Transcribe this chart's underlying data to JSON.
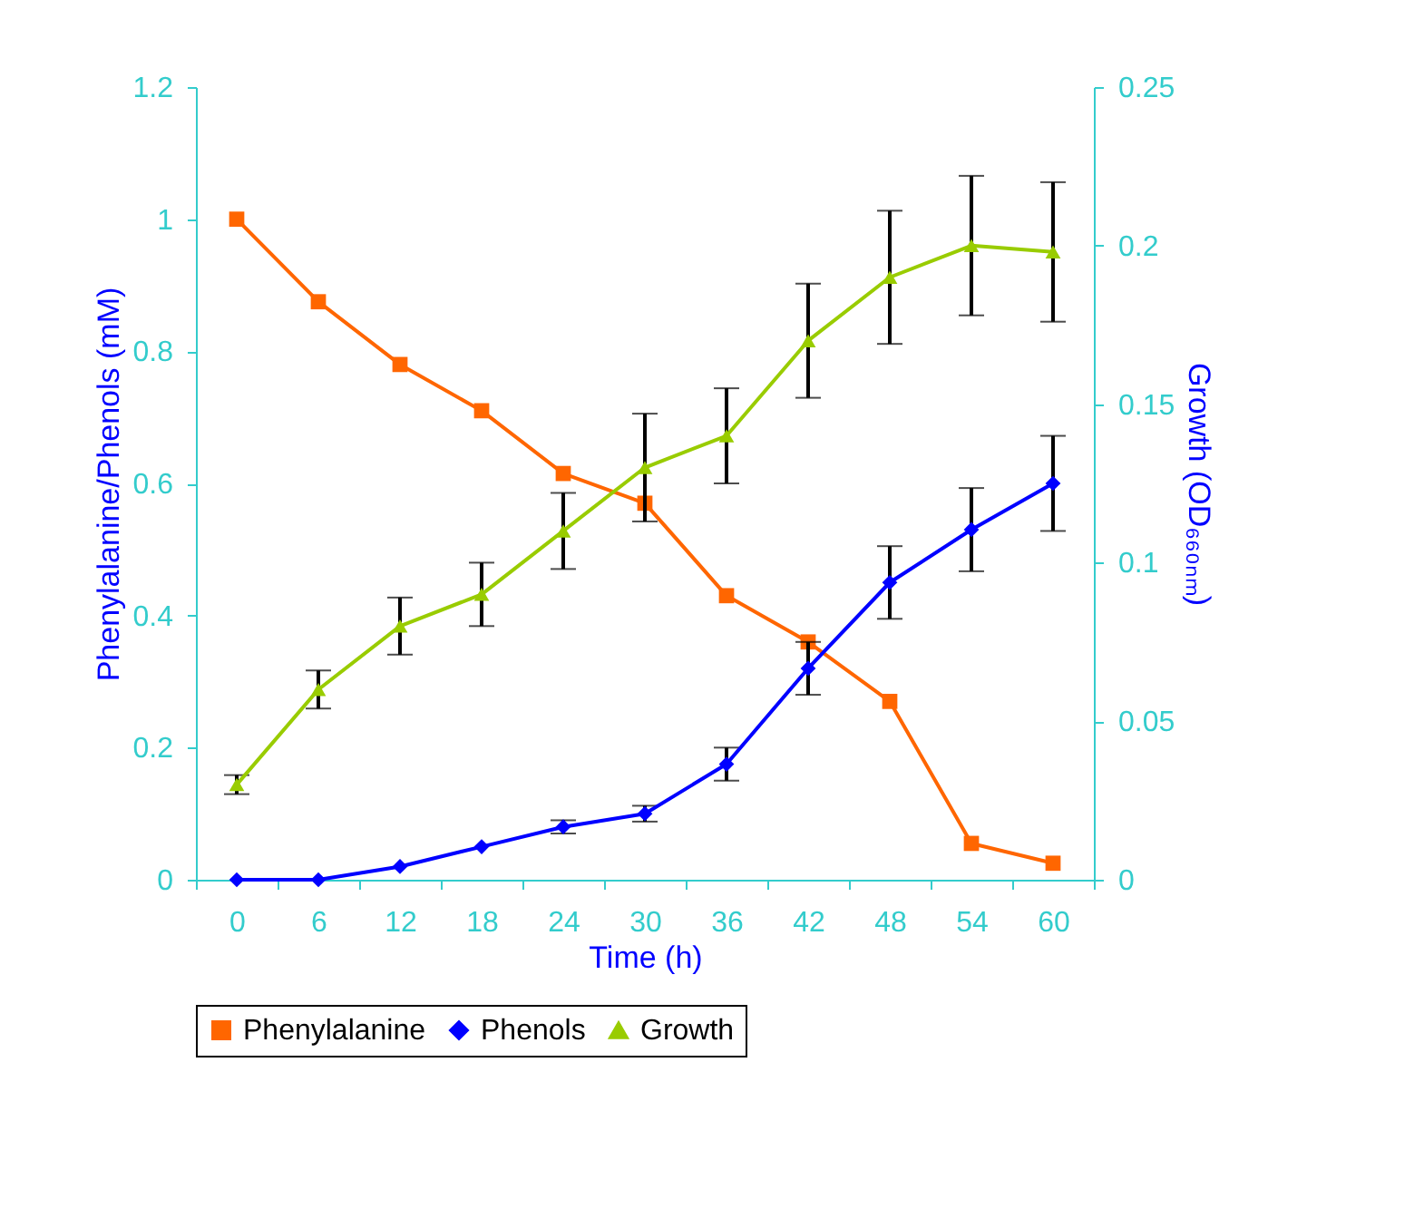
{
  "chart_data": {
    "type": "line",
    "categories": [
      "0",
      "6",
      "12",
      "18",
      "24",
      "30",
      "36",
      "42",
      "48",
      "54",
      "60"
    ],
    "xlabel": "Time (h)",
    "ylabel": "Phenylalanine/Phenols (mM)",
    "y2label": "Growth (OD₆₆₀ₙₘ)",
    "ylim": [
      0,
      1.2
    ],
    "yticks": [
      {
        "value": 0,
        "label": "0"
      },
      0.2,
      0.4,
      0.6,
      0.8,
      {
        "value": 1,
        "label": "1"
      },
      1.2
    ],
    "y2lim": [
      0,
      0.25
    ],
    "y2ticks": [
      {
        "value": 0,
        "label": "0"
      },
      0.05,
      0.1,
      0.15,
      0.2,
      0.25
    ],
    "legend": "bottom",
    "grid": false,
    "series": [
      {
        "name": "Phenylalanine",
        "color": "#ff6600",
        "marker": "square",
        "values": [
          1.0,
          0.875,
          0.78,
          0.71,
          0.615,
          0.57,
          0.43,
          0.36,
          0.27,
          0.055,
          0.025
        ]
      },
      {
        "name": "Phenols",
        "color": "#0000ff",
        "marker": "diamond",
        "values": [
          0,
          0,
          0.02,
          0.05,
          0.08,
          0.1,
          0.175,
          0.32,
          0.45,
          0.53,
          0.6
        ],
        "errors": [
          null,
          null,
          null,
          null,
          0.01,
          0.012,
          0.025,
          0.04,
          0.055,
          0.063,
          0.072
        ]
      },
      {
        "name": "Growth",
        "color": "#99cc00",
        "marker": "triangle",
        "axis": "y2",
        "values": [
          0.03,
          0.06,
          0.08,
          0.09,
          0.11,
          0.13,
          0.14,
          0.17,
          0.19,
          0.2,
          0.198
        ],
        "errors": [
          0.003,
          0.006,
          0.009,
          0.01,
          0.012,
          0.017,
          0.015,
          0.018,
          0.021,
          0.022,
          0.022
        ]
      }
    ]
  }
}
